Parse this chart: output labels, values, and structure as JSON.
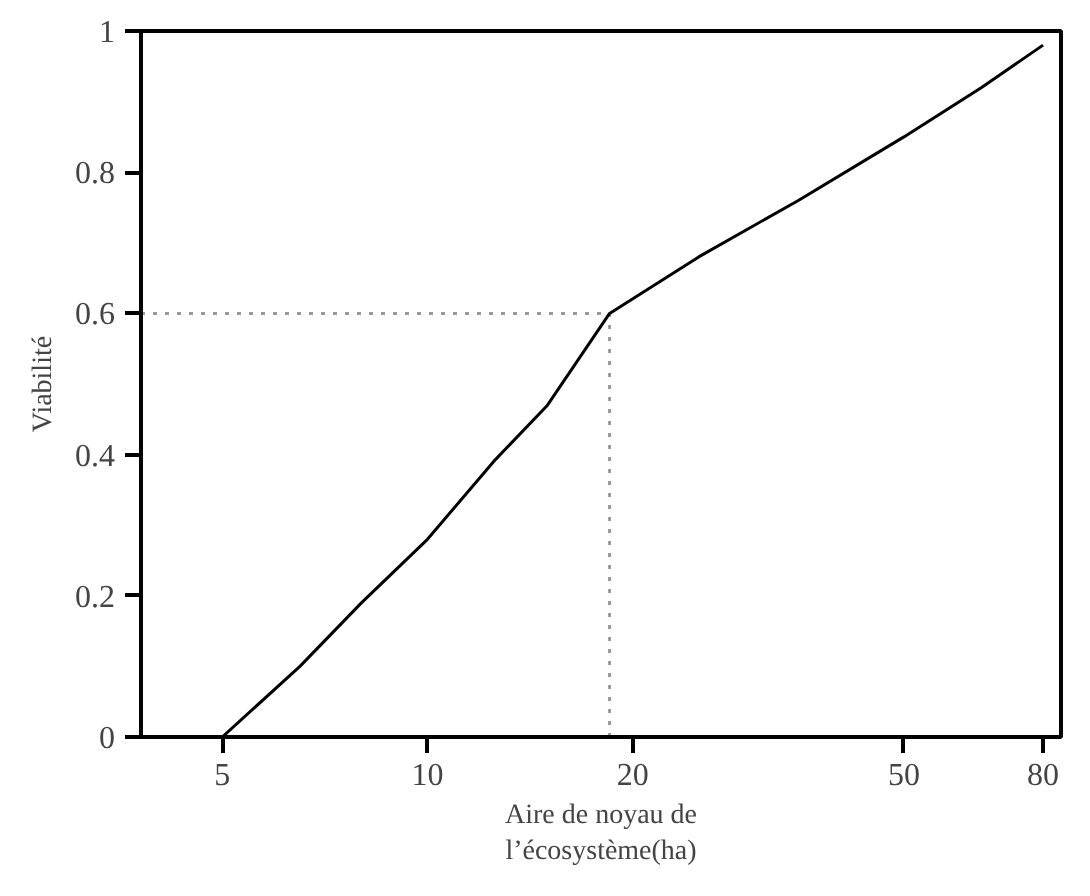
{
  "chart_data": {
    "type": "line",
    "xlabel": "Aire de noyau de\nl’écosystème(ha)",
    "ylabel": "Viabilité",
    "log": "x",
    "x": [
      5,
      6.5,
      8,
      10,
      12.5,
      15,
      18.5,
      25,
      35,
      50,
      65,
      80
    ],
    "series": [
      {
        "color": "#000000",
        "values": [
          0,
          0.1,
          0.19,
          0.28,
          0.39,
          0.47,
          0.6,
          0.68,
          0.76,
          0.85,
          0.92,
          0.98
        ]
      }
    ],
    "xlim": [
      3.8,
      85
    ],
    "xticks": [
      5,
      10,
      20,
      50,
      80
    ],
    "ylim": [
      0,
      1
    ],
    "yticks": [
      0,
      {
        "value": 0.2,
        "label": "0.2"
      },
      {
        "value": 0.4,
        "label": "0.4"
      },
      {
        "value": 0.6,
        "label": "0.6"
      },
      {
        "value": 0.8,
        "label": "0.8"
      },
      1
    ],
    "ref_lines": [
      {
        "axis": "y",
        "value": 0.6,
        "color": "#999999",
        "line_style": "dotted"
      },
      {
        "axis": "x",
        "value": 18.5,
        "color": "#999999",
        "line_style": "dotted"
      }
    ],
    "grid": false,
    "marker": "none",
    "line_style": "solid"
  }
}
